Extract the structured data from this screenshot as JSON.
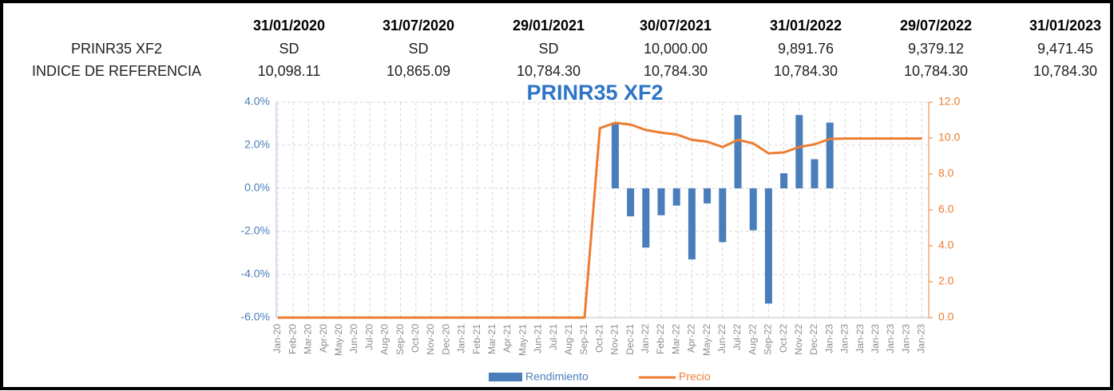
{
  "table": {
    "columns": [
      "31/01/2020",
      "31/07/2020",
      "29/01/2021",
      "30/07/2021",
      "31/01/2022",
      "29/07/2022",
      "31/01/2023"
    ],
    "rows": [
      {
        "label": "PRINR35 XF2",
        "values": [
          "SD",
          "SD",
          "SD",
          "10,000.00",
          "9,891.76",
          "9,379.12",
          "9,471.45"
        ]
      },
      {
        "label": "INDICE DE REFERENCIA",
        "values": [
          "10,098.11",
          "10,865.09",
          "10,784.30",
          "10,784.30",
          "10,784.30",
          "10,784.30",
          "10,784.30"
        ]
      }
    ]
  },
  "chart_data": {
    "type": "combo",
    "title": "PRINR35 XF2",
    "categories": [
      "Jan-20",
      "Feb-20",
      "Mar-20",
      "Apr-20",
      "May-20",
      "Jun-20",
      "Jul-20",
      "Aug-20",
      "Sep-20",
      "Oct-20",
      "Nov-20",
      "Dec-20",
      "Jan-21",
      "Feb-21",
      "Mar-21",
      "Apr-21",
      "May-21",
      "Jun-21",
      "Jul-21",
      "Aug-21",
      "Sep-21",
      "Oct-21",
      "Nov-21",
      "Dec-21",
      "Jan-22",
      "Feb-22",
      "Mar-22",
      "Apr-22",
      "May-22",
      "Jun-22",
      "Jul-22",
      "Aug-22",
      "Sep-22",
      "Oct-22",
      "Nov-22",
      "Dec-22",
      "Jan-23",
      "Jan-23",
      "Jan-23",
      "Jan-23",
      "Jan-23",
      "Jan-23",
      "Jan-23"
    ],
    "series": [
      {
        "name": "Rendimiento",
        "type": "bar",
        "color": "#4a7ebb",
        "values": [
          null,
          null,
          null,
          null,
          null,
          null,
          null,
          null,
          null,
          null,
          null,
          null,
          null,
          null,
          null,
          null,
          null,
          null,
          null,
          null,
          null,
          null,
          3.05,
          -1.3,
          -2.75,
          -1.25,
          -0.8,
          -3.3,
          -0.7,
          -2.5,
          3.4,
          -1.95,
          -5.35,
          0.7,
          3.4,
          1.35,
          3.05,
          null,
          null,
          null,
          null,
          null,
          null
        ]
      },
      {
        "name": "Precio",
        "type": "line",
        "color": "#ed7d31",
        "axis": "y2",
        "values": [
          0,
          0,
          0,
          0,
          0,
          0,
          0,
          0,
          0,
          0,
          0,
          0,
          0,
          0,
          0,
          0,
          0,
          0,
          0,
          0,
          0,
          10.55,
          10.85,
          10.75,
          10.45,
          10.3,
          10.2,
          9.9,
          9.8,
          9.5,
          9.9,
          9.7,
          9.15,
          9.2,
          9.5,
          9.65,
          9.95,
          9.97,
          9.97,
          9.97,
          9.97,
          9.97,
          9.97
        ]
      }
    ],
    "ylim": [
      -6,
      4
    ],
    "yticks": [
      {
        "value": -6,
        "label": "-6.0%"
      },
      {
        "value": -4,
        "label": "-4.0%"
      },
      {
        "value": -2,
        "label": "-2.0%"
      },
      {
        "value": 0,
        "label": "0.0%"
      },
      {
        "value": 2,
        "label": "2.0%"
      },
      {
        "value": 4,
        "label": "4.0%"
      }
    ],
    "y2lim": [
      0,
      12
    ],
    "y2ticks": [
      {
        "value": 0,
        "label": "0.0"
      },
      {
        "value": 2,
        "label": "2.0"
      },
      {
        "value": 4,
        "label": "4.0"
      },
      {
        "value": 6,
        "label": "6.0"
      },
      {
        "value": 8,
        "label": "8.0"
      },
      {
        "value": 10,
        "label": "10.0"
      },
      {
        "value": 12,
        "label": "12.0"
      }
    ],
    "grid": true,
    "legend": "bottom"
  }
}
